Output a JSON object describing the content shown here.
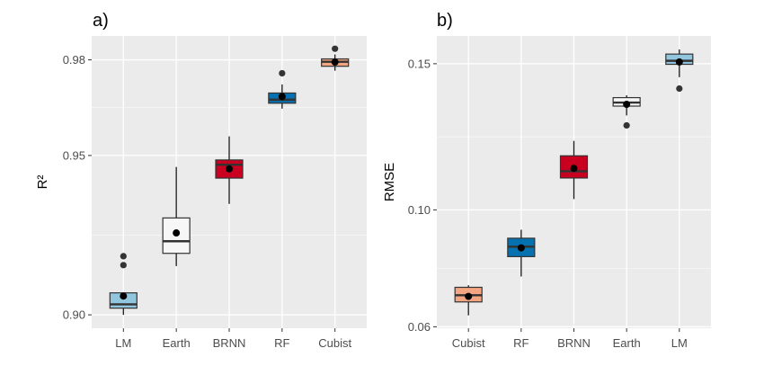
{
  "chart_data": [
    {
      "type": "box",
      "panel_label": "a)",
      "ylabel": "R²",
      "xlabel": "",
      "ylim": [
        0.8958,
        0.9875
      ],
      "yticks": [
        0.9,
        0.95,
        0.98
      ],
      "ytick_labels": [
        "0.90",
        "0.95",
        "0.98"
      ],
      "grid": true,
      "categories": [
        "LM",
        "Earth",
        "BRNN",
        "RF",
        "Cubist"
      ],
      "boxes": [
        {
          "name": "LM",
          "color": "#92c5de",
          "whisker_low": 0.9,
          "q1": 0.9021,
          "median": 0.9033,
          "q3": 0.9069,
          "whisker_high": 0.9069,
          "mean": 0.9059,
          "outliers": [
            0.9156,
            0.9184
          ]
        },
        {
          "name": "Earth",
          "color": "#f7f7f7",
          "whisker_low": 0.9153,
          "q1": 0.9193,
          "median": 0.9231,
          "q3": 0.9304,
          "whisker_high": 0.9464,
          "mean": 0.9257,
          "outliers": []
        },
        {
          "name": "BRNN",
          "color": "#ca0020",
          "whisker_low": 0.9348,
          "q1": 0.9429,
          "median": 0.9471,
          "q3": 0.9486,
          "whisker_high": 0.956,
          "mean": 0.9458,
          "outliers": []
        },
        {
          "name": "RF",
          "color": "#0571b0",
          "whisker_low": 0.9647,
          "q1": 0.9664,
          "median": 0.9675,
          "q3": 0.9696,
          "whisker_high": 0.9723,
          "mean": 0.9685,
          "outliers": [
            0.9758
          ]
        },
        {
          "name": "Cubist",
          "color": "#f4a582",
          "whisker_low": 0.9766,
          "q1": 0.978,
          "median": 0.9794,
          "q3": 0.9803,
          "whisker_high": 0.9817,
          "mean": 0.9793,
          "outliers": [
            0.9835
          ]
        }
      ]
    },
    {
      "type": "box",
      "panel_label": "b)",
      "ylabel": "RMSE",
      "xlabel": "",
      "ylim": [
        0.0595,
        0.1595
      ],
      "yticks": [
        0.06,
        0.1,
        0.15
      ],
      "ytick_labels": [
        "0.06",
        "0.10",
        "0.15"
      ],
      "grid": true,
      "categories": [
        "Cubist",
        "RF",
        "BRNN",
        "Earth",
        "LM"
      ],
      "boxes": [
        {
          "name": "Cubist",
          "color": "#f4a582",
          "whisker_low": 0.0639,
          "q1": 0.0685,
          "median": 0.0708,
          "q3": 0.0735,
          "whisker_high": 0.0742,
          "mean": 0.0704,
          "outliers": []
        },
        {
          "name": "RF",
          "color": "#0571b0",
          "whisker_low": 0.0772,
          "q1": 0.084,
          "median": 0.0874,
          "q3": 0.0903,
          "whisker_high": 0.0932,
          "mean": 0.087,
          "outliers": []
        },
        {
          "name": "BRNN",
          "color": "#ca0020",
          "whisker_low": 0.1037,
          "q1": 0.1109,
          "median": 0.1132,
          "q3": 0.1185,
          "whisker_high": 0.1236,
          "mean": 0.1142,
          "outliers": []
        },
        {
          "name": "Earth",
          "color": "#f7f7f7",
          "whisker_low": 0.1323,
          "q1": 0.1355,
          "median": 0.1367,
          "q3": 0.1384,
          "whisker_high": 0.1392,
          "mean": 0.1361,
          "outliers": [
            0.1289
          ]
        },
        {
          "name": "LM",
          "color": "#92c5de",
          "whisker_low": 0.1454,
          "q1": 0.1498,
          "median": 0.151,
          "q3": 0.1533,
          "whisker_high": 0.1549,
          "mean": 0.1506,
          "outliers": [
            0.1415
          ]
        }
      ]
    }
  ]
}
